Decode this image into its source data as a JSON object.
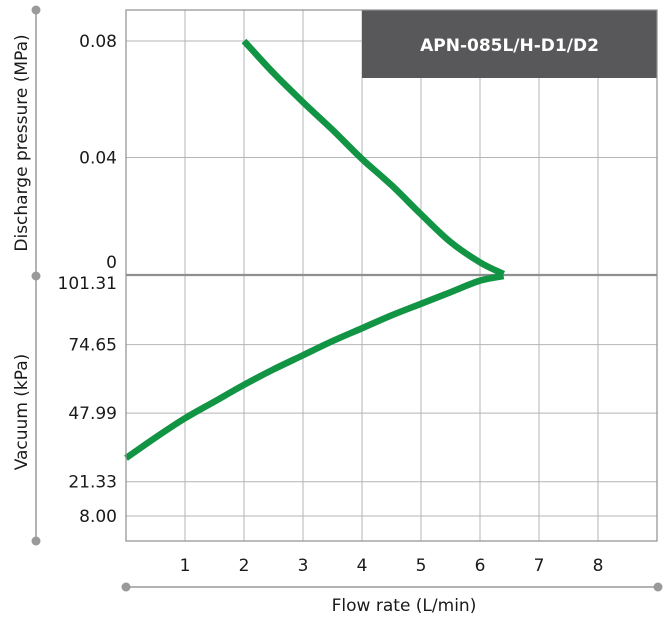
{
  "chart_data": {
    "type": "line",
    "title": "APN-085L/H-D1/D2",
    "xlabel": "Flow rate (L/min)",
    "x_ticks": [
      "1",
      "2",
      "3",
      "4",
      "5",
      "6",
      "7",
      "8"
    ],
    "xlim": [
      0,
      9
    ],
    "upper_axis": {
      "label": "Discharge pressure (MPa)",
      "ticks": [
        {
          "value": 0.08,
          "label": "0.08"
        },
        {
          "value": 0.04,
          "label": "0.04"
        },
        {
          "value": 0,
          "label": "0"
        }
      ],
      "range": [
        0,
        0.08
      ]
    },
    "lower_axis": {
      "label": "Vacuum (kPa)",
      "ticks": [
        {
          "value": 101.31,
          "label": "101.31"
        },
        {
          "value": 74.65,
          "label": "74.65"
        },
        {
          "value": 47.99,
          "label": "47.99"
        },
        {
          "value": 21.33,
          "label": "21.33"
        },
        {
          "value": 8.0,
          "label": "8.00"
        }
      ],
      "range": [
        101.31,
        8.0
      ]
    },
    "grid": true,
    "series": [
      {
        "color": "#119443",
        "pressure_branch": [
          {
            "x": 2.0,
            "y": 0.08
          },
          {
            "x": 2.5,
            "y": 0.069
          },
          {
            "x": 3.0,
            "y": 0.059
          },
          {
            "x": 3.5,
            "y": 0.0495
          },
          {
            "x": 4.0,
            "y": 0.0395
          },
          {
            "x": 4.5,
            "y": 0.0305
          },
          {
            "x": 5.0,
            "y": 0.0205
          },
          {
            "x": 5.5,
            "y": 0.011
          },
          {
            "x": 6.0,
            "y": 0.004
          },
          {
            "x": 6.4,
            "y": 0
          }
        ],
        "vacuum_branch": [
          {
            "x": 6.4,
            "y": 101.31
          },
          {
            "x": 6.0,
            "y": 99.5
          },
          {
            "x": 5.5,
            "y": 95.0
          },
          {
            "x": 5.0,
            "y": 90.5
          },
          {
            "x": 4.5,
            "y": 86.0
          },
          {
            "x": 4.0,
            "y": 81.0
          },
          {
            "x": 3.5,
            "y": 76.0
          },
          {
            "x": 3.0,
            "y": 70.5
          },
          {
            "x": 2.5,
            "y": 65.0
          },
          {
            "x": 2.0,
            "y": 59.0
          },
          {
            "x": 1.5,
            "y": 52.5
          },
          {
            "x": 1.0,
            "y": 46.0
          },
          {
            "x": 0.5,
            "y": 38.5
          },
          {
            "x": 0.0,
            "y": 30.5
          }
        ]
      }
    ]
  },
  "colors": {
    "curve": "#119443",
    "title_box": "#58585a",
    "grid": "#b4b4b4",
    "zero_line": "#8f8f8f",
    "bracket": "#9a9a9a"
  }
}
